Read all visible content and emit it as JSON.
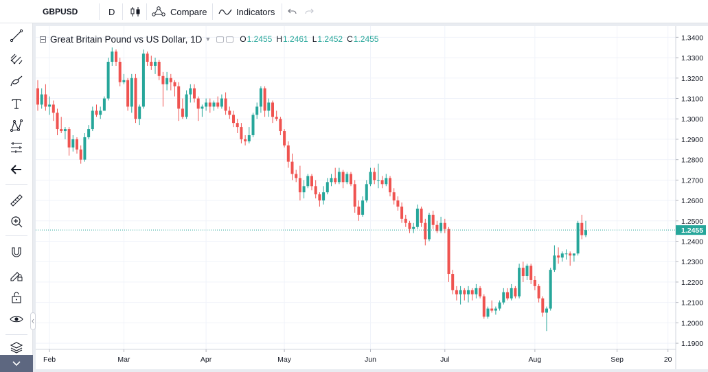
{
  "toolbar": {
    "symbol": "GBPUSD",
    "interval": "D",
    "compare_label": "Compare",
    "indicators_label": "Indicators"
  },
  "left_toolbar": {
    "tools": [
      "crosshair-icon",
      "trend-line-icon",
      "pitchfork-icon",
      "brush-icon",
      "text-icon",
      "pattern-icon",
      "prediction-icon",
      "back-arrow-icon",
      "ruler-icon",
      "zoom-in-icon",
      "magnet-icon",
      "lock-pencil-icon",
      "lock-icon",
      "eye-icon",
      "layers-icon"
    ]
  },
  "legend": {
    "title": "Great Britain Pound vs US Dollar, 1D",
    "o_label": "O",
    "o_value": "1.2455",
    "h_label": "H",
    "h_value": "1.2461",
    "l_label": "L",
    "l_value": "1.2452",
    "c_label": "C",
    "c_value": "1.2455"
  },
  "colors": {
    "up": "#26a69a",
    "down": "#ef5350",
    "last_price_bg": "#26a69a",
    "grid": "#f0f3fa"
  },
  "chart_data": {
    "type": "candlestick",
    "title": "Great Britain Pound vs US Dollar, 1D",
    "x_ticks": [
      {
        "label": "Feb",
        "index": 3
      },
      {
        "label": "Mar",
        "index": 22
      },
      {
        "label": "Apr",
        "index": 43
      },
      {
        "label": "May",
        "index": 63
      },
      {
        "label": "Jun",
        "index": 85
      },
      {
        "label": "Jul",
        "index": 104
      },
      {
        "label": "Aug",
        "index": 127
      },
      {
        "label": "Sep",
        "index": 148
      },
      {
        "label": "20",
        "index": 161
      }
    ],
    "y_ticks": [
      "1.3400",
      "1.3300",
      "1.3200",
      "1.3100",
      "1.3000",
      "1.2900",
      "1.2800",
      "1.2700",
      "1.2600",
      "1.2500",
      "1.2400",
      "1.2300",
      "1.2200",
      "1.2100",
      "1.2000",
      "1.1900"
    ],
    "ylim": [
      1.187,
      1.3455
    ],
    "last_price": "1.2455",
    "grid": true,
    "candles": [
      [
        1.315,
        1.319,
        1.304,
        1.307
      ],
      [
        1.307,
        1.315,
        1.305,
        1.312
      ],
      [
        1.312,
        1.317,
        1.304,
        1.306
      ],
      [
        1.306,
        1.311,
        1.302,
        1.307
      ],
      [
        1.307,
        1.309,
        1.299,
        1.303
      ],
      [
        1.303,
        1.305,
        1.292,
        1.295
      ],
      [
        1.295,
        1.301,
        1.293,
        1.294
      ],
      [
        1.294,
        1.296,
        1.29,
        1.295
      ],
      [
        1.295,
        1.296,
        1.282,
        1.286
      ],
      [
        1.286,
        1.292,
        1.284,
        1.29
      ],
      [
        1.29,
        1.291,
        1.283,
        1.285
      ],
      [
        1.285,
        1.287,
        1.278,
        1.28
      ],
      [
        1.28,
        1.293,
        1.279,
        1.291
      ],
      [
        1.291,
        1.297,
        1.29,
        1.295
      ],
      [
        1.295,
        1.306,
        1.294,
        1.304
      ],
      [
        1.304,
        1.307,
        1.301,
        1.302
      ],
      [
        1.302,
        1.306,
        1.3,
        1.304
      ],
      [
        1.304,
        1.311,
        1.304,
        1.31
      ],
      [
        1.31,
        1.33,
        1.309,
        1.328
      ],
      [
        1.328,
        1.335,
        1.326,
        1.333
      ],
      [
        1.333,
        1.334,
        1.326,
        1.328
      ],
      [
        1.328,
        1.33,
        1.316,
        1.318
      ],
      [
        1.318,
        1.322,
        1.317,
        1.319
      ],
      [
        1.319,
        1.32,
        1.304,
        1.306
      ],
      [
        1.306,
        1.322,
        1.303,
        1.32
      ],
      [
        1.32,
        1.322,
        1.298,
        1.3
      ],
      [
        1.3,
        1.307,
        1.297,
        1.306
      ],
      [
        1.306,
        1.334,
        1.305,
        1.332
      ],
      [
        1.332,
        1.333,
        1.326,
        1.328
      ],
      [
        1.328,
        1.331,
        1.324,
        1.326
      ],
      [
        1.326,
        1.33,
        1.322,
        1.328
      ],
      [
        1.328,
        1.329,
        1.319,
        1.321
      ],
      [
        1.321,
        1.323,
        1.306,
        1.317
      ],
      [
        1.317,
        1.323,
        1.314,
        1.32
      ],
      [
        1.32,
        1.322,
        1.314,
        1.318
      ],
      [
        1.318,
        1.319,
        1.311,
        1.316
      ],
      [
        1.316,
        1.318,
        1.299,
        1.305
      ],
      [
        1.305,
        1.31,
        1.3,
        1.301
      ],
      [
        1.301,
        1.314,
        1.3,
        1.312
      ],
      [
        1.312,
        1.317,
        1.308,
        1.315
      ],
      [
        1.315,
        1.317,
        1.308,
        1.31
      ],
      [
        1.31,
        1.311,
        1.299,
        1.305
      ],
      [
        1.305,
        1.307,
        1.301,
        1.306
      ],
      [
        1.306,
        1.31,
        1.304,
        1.308
      ],
      [
        1.308,
        1.31,
        1.303,
        1.306
      ],
      [
        1.306,
        1.309,
        1.304,
        1.308
      ],
      [
        1.308,
        1.311,
        1.305,
        1.306
      ],
      [
        1.306,
        1.312,
        1.305,
        1.31
      ],
      [
        1.31,
        1.313,
        1.302,
        1.304
      ],
      [
        1.304,
        1.306,
        1.3,
        1.302
      ],
      [
        1.302,
        1.304,
        1.296,
        1.298
      ],
      [
        1.298,
        1.3,
        1.293,
        1.296
      ],
      [
        1.296,
        1.298,
        1.288,
        1.29
      ],
      [
        1.29,
        1.292,
        1.287,
        1.289
      ],
      [
        1.289,
        1.296,
        1.288,
        1.292
      ],
      [
        1.292,
        1.303,
        1.291,
        1.302
      ],
      [
        1.302,
        1.308,
        1.3,
        1.306
      ],
      [
        1.306,
        1.316,
        1.303,
        1.315
      ],
      [
        1.315,
        1.316,
        1.301,
        1.304
      ],
      [
        1.304,
        1.31,
        1.301,
        1.308
      ],
      [
        1.308,
        1.309,
        1.298,
        1.301
      ],
      [
        1.301,
        1.304,
        1.299,
        1.3
      ],
      [
        1.3,
        1.301,
        1.292,
        1.294
      ],
      [
        1.294,
        1.295,
        1.286,
        1.287
      ],
      [
        1.287,
        1.289,
        1.276,
        1.279
      ],
      [
        1.279,
        1.283,
        1.27,
        1.273
      ],
      [
        1.273,
        1.275,
        1.269,
        1.271
      ],
      [
        1.271,
        1.277,
        1.26,
        1.264
      ],
      [
        1.264,
        1.27,
        1.261,
        1.267
      ],
      [
        1.267,
        1.273,
        1.266,
        1.272
      ],
      [
        1.272,
        1.273,
        1.265,
        1.267
      ],
      [
        1.267,
        1.27,
        1.261,
        1.263
      ],
      [
        1.263,
        1.264,
        1.257,
        1.26
      ],
      [
        1.26,
        1.267,
        1.258,
        1.264
      ],
      [
        1.264,
        1.271,
        1.263,
        1.269
      ],
      [
        1.269,
        1.273,
        1.267,
        1.271
      ],
      [
        1.271,
        1.276,
        1.268,
        1.269
      ],
      [
        1.269,
        1.276,
        1.268,
        1.274
      ],
      [
        1.274,
        1.275,
        1.266,
        1.269
      ],
      [
        1.269,
        1.274,
        1.268,
        1.273
      ],
      [
        1.273,
        1.274,
        1.267,
        1.268
      ],
      [
        1.268,
        1.27,
        1.254,
        1.257
      ],
      [
        1.257,
        1.26,
        1.25,
        1.253
      ],
      [
        1.253,
        1.262,
        1.252,
        1.26
      ],
      [
        1.26,
        1.27,
        1.259,
        1.268
      ],
      [
        1.268,
        1.276,
        1.267,
        1.274
      ],
      [
        1.274,
        1.276,
        1.268,
        1.27
      ],
      [
        1.27,
        1.278,
        1.266,
        1.27
      ],
      [
        1.27,
        1.272,
        1.266,
        1.268
      ],
      [
        1.268,
        1.273,
        1.267,
        1.271
      ],
      [
        1.271,
        1.272,
        1.262,
        1.264
      ],
      [
        1.264,
        1.266,
        1.258,
        1.26
      ],
      [
        1.26,
        1.262,
        1.255,
        1.257
      ],
      [
        1.257,
        1.259,
        1.249,
        1.251
      ],
      [
        1.251,
        1.253,
        1.247,
        1.249
      ],
      [
        1.249,
        1.25,
        1.244,
        1.246
      ],
      [
        1.246,
        1.249,
        1.244,
        1.247
      ],
      [
        1.247,
        1.258,
        1.246,
        1.256
      ],
      [
        1.256,
        1.257,
        1.247,
        1.249
      ],
      [
        1.249,
        1.251,
        1.238,
        1.241
      ],
      [
        1.241,
        1.254,
        1.24,
        1.253
      ],
      [
        1.253,
        1.255,
        1.246,
        1.248
      ],
      [
        1.248,
        1.25,
        1.244,
        1.245
      ],
      [
        1.245,
        1.252,
        1.244,
        1.249
      ],
      [
        1.249,
        1.251,
        1.244,
        1.246
      ],
      [
        1.246,
        1.247,
        1.22,
        1.224
      ],
      [
        1.224,
        1.226,
        1.214,
        1.216
      ],
      [
        1.216,
        1.218,
        1.211,
        1.214
      ],
      [
        1.214,
        1.218,
        1.209,
        1.216
      ],
      [
        1.216,
        1.217,
        1.211,
        1.214
      ],
      [
        1.214,
        1.218,
        1.21,
        1.216
      ],
      [
        1.216,
        1.217,
        1.211,
        1.214
      ],
      [
        1.214,
        1.219,
        1.212,
        1.217
      ],
      [
        1.217,
        1.218,
        1.212,
        1.213
      ],
      [
        1.213,
        1.214,
        1.202,
        1.203
      ],
      [
        1.203,
        1.208,
        1.202,
        1.207
      ],
      [
        1.207,
        1.211,
        1.205,
        1.206
      ],
      [
        1.206,
        1.208,
        1.204,
        1.207
      ],
      [
        1.207,
        1.211,
        1.206,
        1.21
      ],
      [
        1.21,
        1.217,
        1.209,
        1.215
      ],
      [
        1.215,
        1.217,
        1.211,
        1.212
      ],
      [
        1.212,
        1.219,
        1.211,
        1.217
      ],
      [
        1.217,
        1.218,
        1.212,
        1.213
      ],
      [
        1.213,
        1.229,
        1.212,
        1.227
      ],
      [
        1.227,
        1.23,
        1.22,
        1.223
      ],
      [
        1.223,
        1.229,
        1.221,
        1.228
      ],
      [
        1.228,
        1.229,
        1.219,
        1.221
      ],
      [
        1.221,
        1.223,
        1.216,
        1.218
      ],
      [
        1.218,
        1.219,
        1.21,
        1.212
      ],
      [
        1.212,
        1.213,
        1.203,
        1.205
      ],
      [
        1.205,
        1.208,
        1.196,
        1.207
      ],
      [
        1.207,
        1.227,
        1.206,
        1.226
      ],
      [
        1.226,
        1.238,
        1.225,
        1.233
      ],
      [
        1.233,
        1.237,
        1.229,
        1.232
      ],
      [
        1.232,
        1.235,
        1.23,
        1.234
      ],
      [
        1.234,
        1.236,
        1.231,
        1.234
      ],
      [
        1.234,
        1.235,
        1.228,
        1.233
      ],
      [
        1.233,
        1.234,
        1.23,
        1.234
      ],
      [
        1.234,
        1.25,
        1.233,
        1.249
      ],
      [
        1.249,
        1.253,
        1.241,
        1.243
      ],
      [
        1.243,
        1.25,
        1.242,
        1.2455
      ]
    ]
  }
}
